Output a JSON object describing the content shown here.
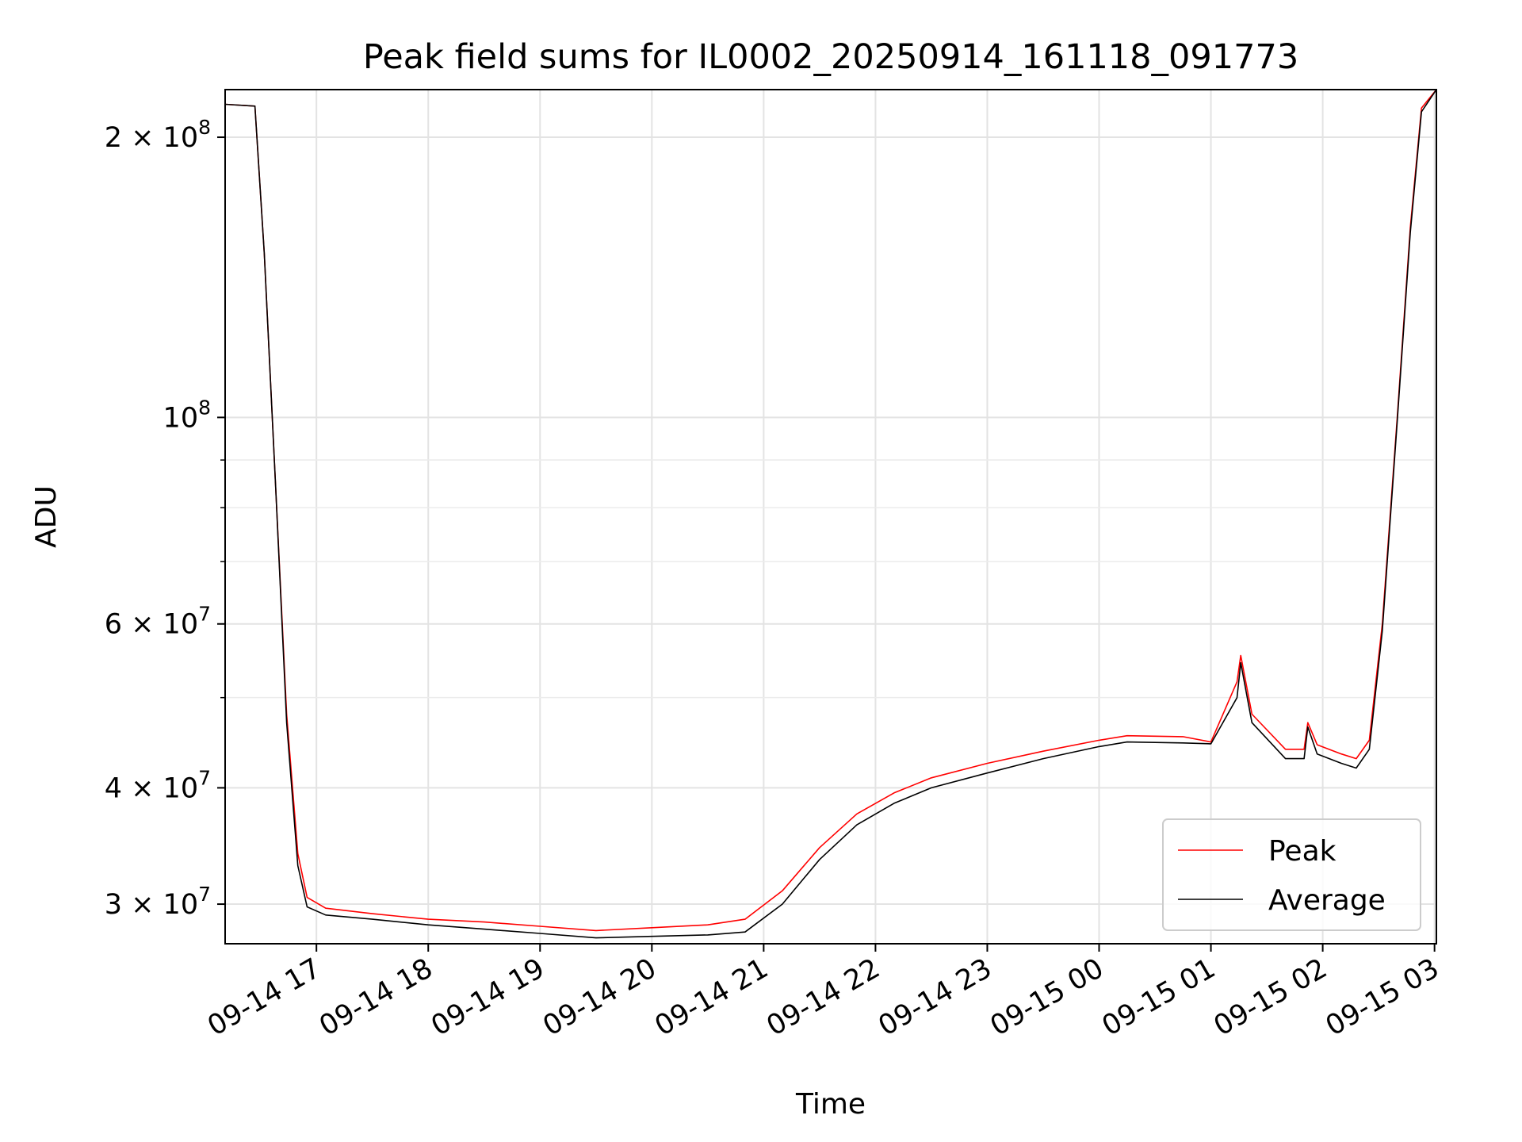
{
  "chart_data": {
    "type": "line",
    "title": "Peak field sums for IL0002_20250914_161118_091773",
    "xlabel": "Time",
    "ylabel": "ADU",
    "x_axis_type": "time",
    "xlim": [
      "2025-09-14 16:11",
      "2025-09-15 03:01"
    ],
    "yscale": "log",
    "ylim": [
      27200000,
      225000000
    ],
    "grid": true,
    "legend_position": "lower right",
    "x_tick_labels": [
      "09-14 17",
      "09-14 18",
      "09-14 19",
      "09-14 20",
      "09-14 21",
      "09-14 22",
      "09-14 23",
      "09-15 00",
      "09-15 01",
      "09-15 02",
      "09-15 03"
    ],
    "x_tick_values": [
      "2025-09-14 17:00",
      "2025-09-14 18:00",
      "2025-09-14 19:00",
      "2025-09-14 20:00",
      "2025-09-14 21:00",
      "2025-09-14 22:00",
      "2025-09-14 23:00",
      "2025-09-15 00:00",
      "2025-09-15 01:00",
      "2025-09-15 02:00",
      "2025-09-15 03:00"
    ],
    "y_tick_labels": [
      {
        "value": 30000000,
        "base": "3 × 10",
        "exp": "7"
      },
      {
        "value": 40000000,
        "base": "4 × 10",
        "exp": "7"
      },
      {
        "value": 60000000,
        "base": "6 × 10",
        "exp": "7"
      },
      {
        "value": 100000000,
        "base": "10",
        "exp": "8"
      },
      {
        "value": 200000000,
        "base": "2 × 10",
        "exp": "8"
      }
    ],
    "y_minor_ticks": [
      50000000,
      70000000,
      80000000,
      90000000
    ],
    "series": [
      {
        "name": "Peak",
        "color": "#ff0000",
        "x": [
          "2025-09-14 16:11",
          "2025-09-14 16:27",
          "2025-09-14 16:32",
          "2025-09-14 16:38",
          "2025-09-14 16:44",
          "2025-09-14 16:50",
          "2025-09-14 16:55",
          "2025-09-14 17:05",
          "2025-09-14 17:30",
          "2025-09-14 18:00",
          "2025-09-14 18:30",
          "2025-09-14 19:00",
          "2025-09-14 19:30",
          "2025-09-14 20:00",
          "2025-09-14 20:30",
          "2025-09-14 20:50",
          "2025-09-14 21:10",
          "2025-09-14 21:30",
          "2025-09-14 21:50",
          "2025-09-14 22:10",
          "2025-09-14 22:30",
          "2025-09-14 23:00",
          "2025-09-14 23:30",
          "2025-09-15 00:00",
          "2025-09-15 00:15",
          "2025-09-15 00:45",
          "2025-09-15 01:00",
          "2025-09-15 01:14",
          "2025-09-15 01:16",
          "2025-09-15 01:22",
          "2025-09-15 01:40",
          "2025-09-15 01:50",
          "2025-09-15 01:52",
          "2025-09-15 01:57",
          "2025-09-15 02:10",
          "2025-09-15 02:18",
          "2025-09-15 02:25",
          "2025-09-15 02:32",
          "2025-09-15 02:40",
          "2025-09-15 02:47",
          "2025-09-15 02:53",
          "2025-09-15 03:01"
        ],
        "y": [
          217000000,
          216000000,
          150000000,
          85000000,
          48000000,
          34000000,
          30500000,
          29700000,
          29300000,
          28900000,
          28700000,
          28400000,
          28100000,
          28300000,
          28500000,
          28900000,
          31000000,
          34500000,
          37500000,
          39500000,
          41000000,
          42500000,
          43800000,
          45000000,
          45500000,
          45400000,
          44800000,
          52000000,
          55500000,
          48000000,
          44000000,
          44000000,
          47000000,
          44500000,
          43500000,
          43000000,
          45000000,
          60000000,
          100000000,
          160000000,
          215000000,
          225000000
        ]
      },
      {
        "name": "Average",
        "color": "#000000",
        "x": [
          "2025-09-14 16:11",
          "2025-09-14 16:27",
          "2025-09-14 16:32",
          "2025-09-14 16:38",
          "2025-09-14 16:44",
          "2025-09-14 16:50",
          "2025-09-14 16:55",
          "2025-09-14 17:05",
          "2025-09-14 17:30",
          "2025-09-14 18:00",
          "2025-09-14 18:30",
          "2025-09-14 19:00",
          "2025-09-14 19:30",
          "2025-09-14 20:00",
          "2025-09-14 20:30",
          "2025-09-14 20:50",
          "2025-09-14 21:10",
          "2025-09-14 21:30",
          "2025-09-14 21:50",
          "2025-09-14 22:10",
          "2025-09-14 22:30",
          "2025-09-14 23:00",
          "2025-09-14 23:30",
          "2025-09-15 00:00",
          "2025-09-15 00:15",
          "2025-09-15 00:45",
          "2025-09-15 01:00",
          "2025-09-15 01:14",
          "2025-09-15 01:16",
          "2025-09-15 01:22",
          "2025-09-15 01:40",
          "2025-09-15 01:50",
          "2025-09-15 01:52",
          "2025-09-15 01:57",
          "2025-09-15 02:10",
          "2025-09-15 02:18",
          "2025-09-15 02:25",
          "2025-09-15 02:32",
          "2025-09-15 02:40",
          "2025-09-15 02:47",
          "2025-09-15 02:53",
          "2025-09-15 03:01"
        ],
        "y": [
          217000000,
          216000000,
          150000000,
          85000000,
          47000000,
          33000000,
          29800000,
          29200000,
          28900000,
          28500000,
          28200000,
          27900000,
          27600000,
          27700000,
          27800000,
          28000000,
          30000000,
          33500000,
          36500000,
          38500000,
          40000000,
          41500000,
          43000000,
          44300000,
          44800000,
          44700000,
          44600000,
          50000000,
          54500000,
          47000000,
          43000000,
          43000000,
          46500000,
          43500000,
          42500000,
          42000000,
          44000000,
          59000000,
          99000000,
          158000000,
          213000000,
          225000000
        ]
      }
    ]
  }
}
